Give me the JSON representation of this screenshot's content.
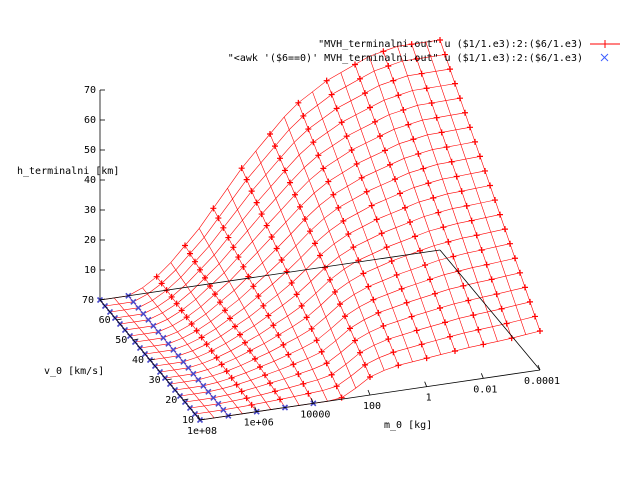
{
  "chart_data": {
    "type": "surface3d",
    "title": "",
    "axes": {
      "z": {
        "label": "h_terminalni [km]",
        "range": [
          0,
          70
        ],
        "ticks": [
          "10",
          "20",
          "30",
          "40",
          "50",
          "60",
          "70"
        ]
      },
      "v": {
        "label": "v_0 [km/s]",
        "range": [
          10,
          70
        ],
        "ticks": [
          "10",
          "20",
          "30",
          "40",
          "50",
          "60",
          "70"
        ]
      },
      "m": {
        "label": "m_0 [kg]",
        "scale": "log",
        "range": [
          100000000,
          0.0001
        ],
        "ticks": [
          "1e+08",
          "1e+06",
          "10000",
          "100",
          "1",
          "0.01",
          "0.0001"
        ]
      }
    },
    "legend": {
      "placement": "top-right",
      "entries": [
        {
          "name": "\"MVH_terminalni.out\" u ($1/1.e3):2:($6/1.e3)",
          "color": "#ff0000",
          "marker": "plus"
        },
        {
          "name": "\"<awk '($6==0)' MVH_terminalni.out\" u ($1/1.e3):2:($6/1.e3)",
          "color": "#0000ff",
          "marker": "cross"
        }
      ]
    },
    "v_samples": [
      10,
      13,
      16,
      19,
      22,
      25,
      28,
      31,
      34,
      37,
      40,
      43,
      46,
      49,
      52,
      55,
      58,
      61,
      64,
      67,
      70
    ],
    "logm_samples": [
      8,
      7.5,
      7,
      6.5,
      6,
      5.5,
      5,
      4.5,
      4,
      3.5,
      3,
      2.5,
      2,
      1.5,
      1,
      0.5,
      0,
      -0.5,
      -1,
      -1.5,
      -2,
      -2.5,
      -3,
      -3.5,
      -4
    ],
    "surface_model": {
      "description": "h_terminalni(v_0, m_0) in km; zero for large masses at low velocity",
      "h_at_v10_by_logm": [
        0,
        0,
        0,
        0,
        0,
        0,
        0,
        0,
        0,
        0,
        0.5,
        3,
        6,
        7.5,
        8.5,
        9,
        9.5,
        10,
        10.5,
        11,
        11.3,
        11.6,
        12,
        12.5,
        13
      ],
      "h_at_v70_by_logm": [
        0,
        0,
        0,
        2,
        5,
        9,
        14,
        19,
        25,
        31,
        37,
        42,
        47,
        52,
        56,
        59,
        62,
        64,
        66,
        68,
        69,
        70,
        70,
        70,
        70
      ]
    }
  }
}
